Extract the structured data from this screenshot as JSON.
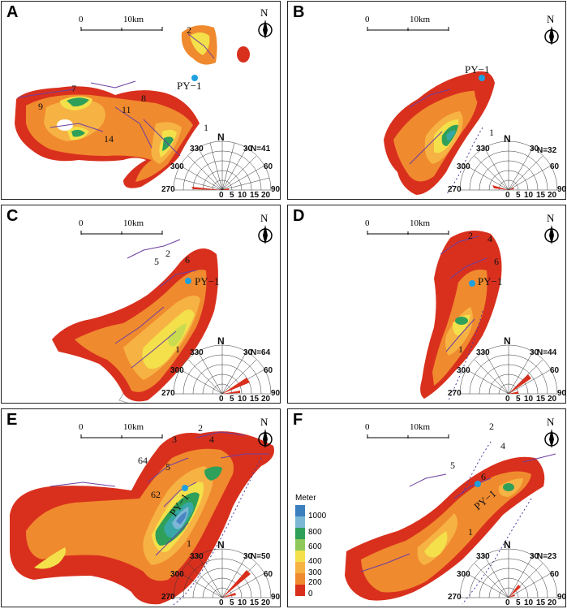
{
  "colors": {
    "red": "#d9301e",
    "orange_red": "#e85a26",
    "orange": "#f08a2e",
    "light_orange": "#f6b344",
    "yellow": "#f4e04a",
    "yellow_green": "#c9dc4f",
    "green": "#2fa05a",
    "teal": "#38a8a6",
    "blue": "#4a86c2",
    "light_blue": "#8fb8dc",
    "fault": "#6b3fa0",
    "well": "#1ea0e0"
  },
  "common": {
    "scale_zero": "0",
    "scale_ten": "10km",
    "north": "N",
    "rose_north": "N",
    "rose_angles": [
      "330",
      "30",
      "300",
      "60",
      "270",
      "90"
    ],
    "rose_ticks": [
      "0",
      "5",
      "10",
      "15",
      "20"
    ]
  },
  "panels": [
    {
      "id": "A",
      "label": "A",
      "rose_count": "N=41",
      "well": "PY−1",
      "numbers": [
        "2",
        "7",
        "9",
        "11",
        "8",
        "14",
        "1"
      ]
    },
    {
      "id": "B",
      "label": "B",
      "rose_count": "N=32",
      "well": "PY−1",
      "numbers": [
        "1"
      ]
    },
    {
      "id": "C",
      "label": "C",
      "rose_count": "N=64",
      "well": "PY−1",
      "numbers": [
        "5",
        "2",
        "6",
        "1"
      ]
    },
    {
      "id": "D",
      "label": "D",
      "rose_count": "N=44",
      "well": "PY−1",
      "numbers": [
        "2",
        "4",
        "6",
        "1"
      ]
    },
    {
      "id": "E",
      "label": "E",
      "rose_count": "N=50",
      "well": "PY−1",
      "numbers": [
        "2",
        "3",
        "4",
        "64",
        "5",
        "62",
        "1"
      ]
    },
    {
      "id": "F",
      "label": "F",
      "rose_count": "N=23",
      "well": "PY−1",
      "numbers": [
        "2",
        "4",
        "5",
        "6",
        "1"
      ]
    }
  ],
  "legend": {
    "title": "Meter",
    "ticks": [
      "1000",
      "800",
      "600",
      "400",
      "300",
      "200",
      "0"
    ],
    "colors": [
      "#3b7fbf",
      "#7cb7d6",
      "#2fa05a",
      "#8ec85a",
      "#f4e04a",
      "#f6b344",
      "#f08a2e",
      "#d9301e"
    ]
  }
}
